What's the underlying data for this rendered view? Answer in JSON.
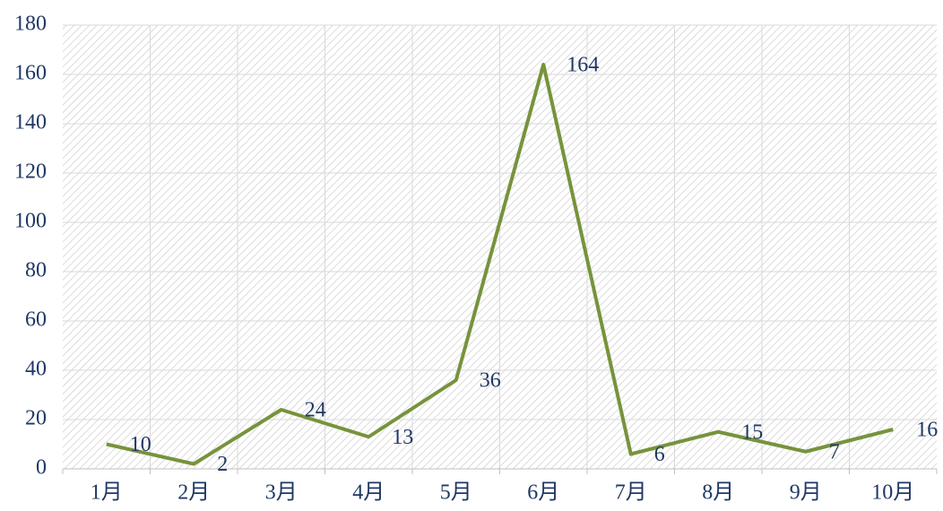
{
  "chart_data": {
    "type": "line",
    "categories": [
      "1月",
      "2月",
      "3月",
      "4月",
      "5月",
      "6月",
      "7月",
      "8月",
      "9月",
      "10月"
    ],
    "series": [
      {
        "name": "",
        "color": "#77933c",
        "values": [
          10,
          2,
          24,
          13,
          36,
          164,
          6,
          15,
          7,
          16
        ]
      }
    ],
    "ylim": [
      0,
      180
    ],
    "yticks": [
      0,
      20,
      40,
      60,
      80,
      100,
      120,
      140,
      160,
      180
    ],
    "grid": true,
    "data_labels": true
  }
}
